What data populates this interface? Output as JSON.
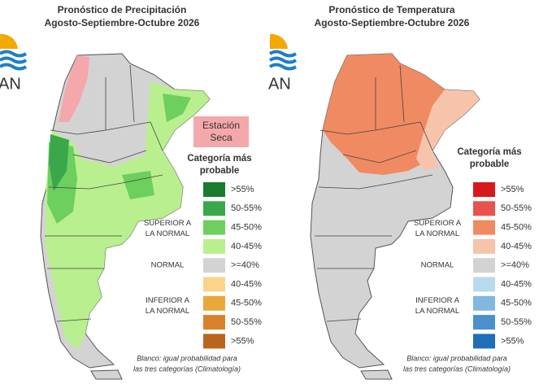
{
  "panels": [
    {
      "title": "Pronóstico de Precipitación",
      "subtitle": "Agosto-Septiembre-Octubre 2026",
      "logo_text": "AN",
      "dry_season": [
        "Estación",
        "Seca"
      ],
      "legend_title": [
        "Categoría más",
        "probable"
      ],
      "legend": [
        {
          "label": ">55%",
          "color": "#1a7a2e"
        },
        {
          "label": "50-55%",
          "color": "#3aa84a"
        },
        {
          "label": "45-50%",
          "color": "#6ccf5e"
        },
        {
          "label": "40-45%",
          "color": "#b9ef8e"
        },
        {
          "label": ">=40%",
          "color": "#d3d3d3"
        },
        {
          "label": "40-45%",
          "color": "#fcd38a"
        },
        {
          "label": "45-50%",
          "color": "#e9a83a"
        },
        {
          "label": "50-55%",
          "color": "#d9822b"
        },
        {
          "label": ">55%",
          "color": "#b9651e"
        }
      ],
      "groups": [
        [
          "SUPERIOR A",
          "LA NORMAL"
        ],
        [
          "NORMAL"
        ],
        [
          "INFERIOR A",
          "LA NORMAL"
        ]
      ],
      "note": [
        "Blanco: igual probabilidad para",
        "las tres categorías (Climatología)"
      ]
    },
    {
      "title": "Pronóstico de Temperatura",
      "subtitle": "Agosto-Septiembre-Octubre 2026",
      "logo_text": "AN",
      "legend_title": [
        "Categoría más",
        "probable"
      ],
      "legend": [
        {
          "label": ">55%",
          "color": "#d7191c"
        },
        {
          "label": "50-55%",
          "color": "#e8524f"
        },
        {
          "label": "45-50%",
          "color": "#f08a62"
        },
        {
          "label": "40-45%",
          "color": "#f6c4ab"
        },
        {
          "label": ">=40%",
          "color": "#d3d3d3"
        },
        {
          "label": "40-45%",
          "color": "#b9d9ee"
        },
        {
          "label": "45-50%",
          "color": "#82b8e0"
        },
        {
          "label": "50-55%",
          "color": "#4b90cc"
        },
        {
          "label": ">55%",
          "color": "#1f6fb8"
        }
      ],
      "groups": [
        [
          "SUPERIOR A",
          "LA NORMAL"
        ],
        [
          "NORMAL"
        ],
        [
          "INFERIOR A",
          "LA NORMAL"
        ]
      ],
      "note": [
        "Blanco: igual probabilidad para",
        "las tres categorías (Climatología)"
      ]
    }
  ]
}
